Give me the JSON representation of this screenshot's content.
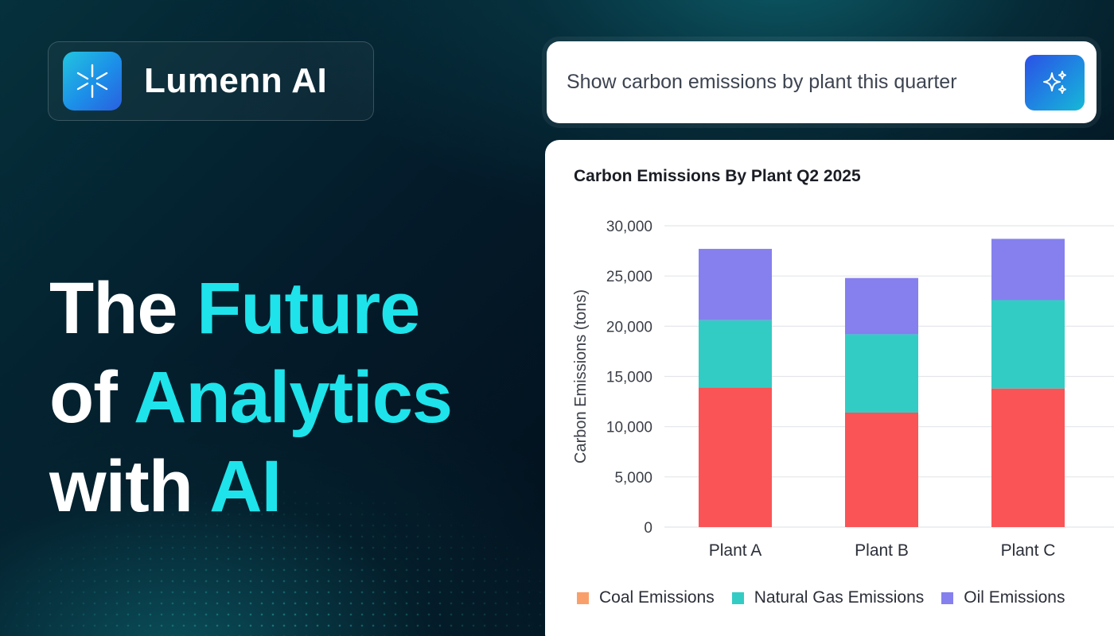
{
  "brand": {
    "name": "Lumenn AI",
    "logo_icon": "asterisk-spark-icon"
  },
  "headline": {
    "line1_plain": "The",
    "line1_accent": "Future",
    "line2_plain": "of",
    "line2_accent": "Analytics",
    "line3_plain": "with",
    "line3_accent": "AI",
    "accent_color": "#1ee3ea"
  },
  "search": {
    "query": "Show carbon emissions by plant this quarter",
    "button_icon": "sparkles-icon"
  },
  "chart_data": {
    "type": "bar",
    "stacked": true,
    "title": "Carbon Emissions By Plant  Q2  2025",
    "xlabel": "",
    "ylabel": "Carbon Emissions (tons)",
    "ylim": [
      0,
      30000
    ],
    "yticks": [
      "30,000",
      "25,000",
      "20,000",
      "15,000",
      "10,000",
      "5,000",
      "0"
    ],
    "grid": true,
    "legend_position": "bottom",
    "categories": [
      "Plant A",
      "Plant B",
      "Plant C"
    ],
    "series": [
      {
        "name": "Coal Emissions",
        "values": [
          13900,
          11400,
          13800
        ],
        "bar_color": "#fa5456",
        "legend_color": "#f9a06a"
      },
      {
        "name": "Natural Gas Emissions",
        "values": [
          6700,
          7800,
          8800
        ],
        "bar_color": "#33ccc4",
        "legend_color": "#33ccc4"
      },
      {
        "name": "Oil Emissions",
        "values": [
          7100,
          5600,
          6100
        ],
        "bar_color": "#8580ee",
        "legend_color": "#8580ee"
      }
    ]
  }
}
